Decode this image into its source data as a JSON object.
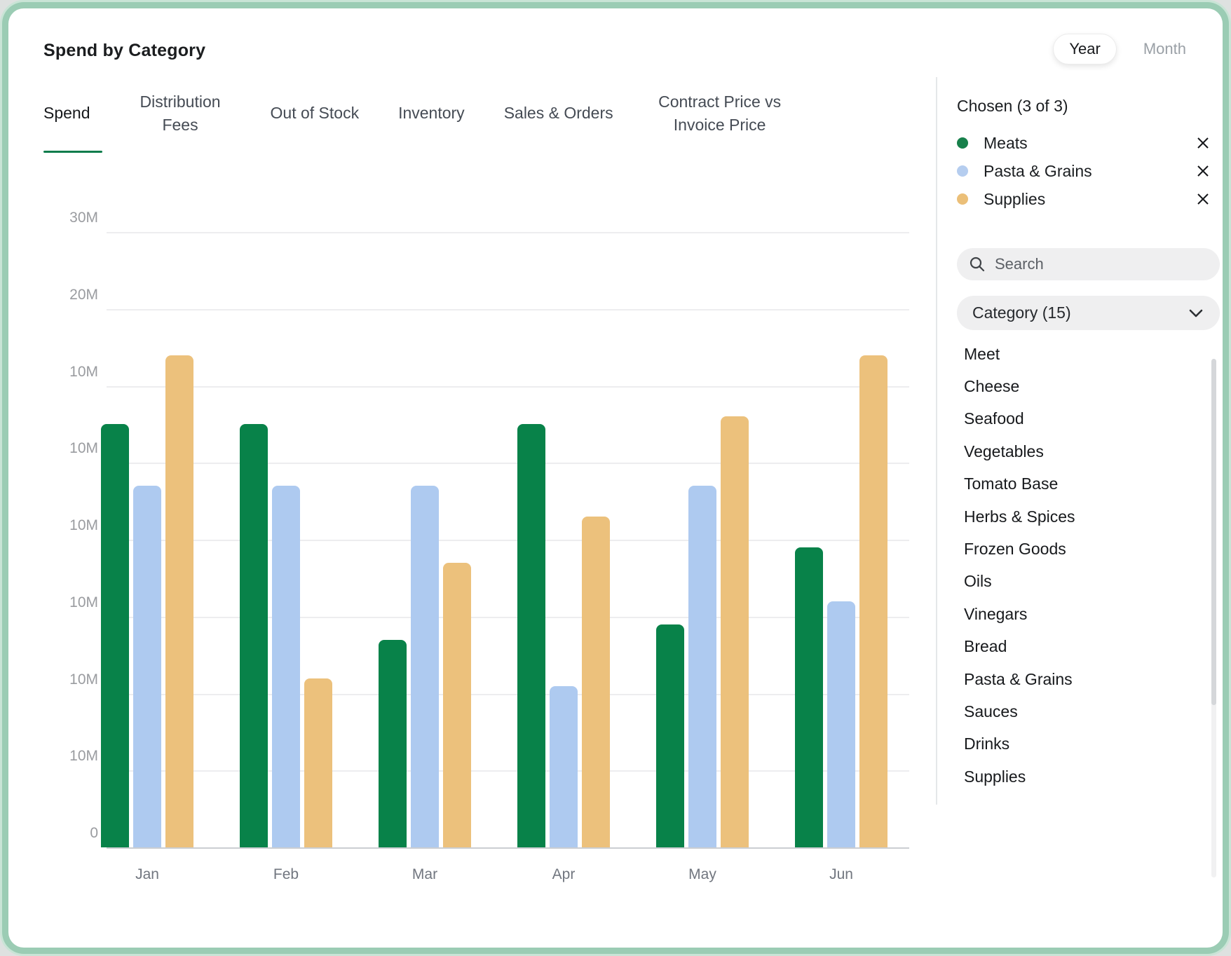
{
  "header": {
    "title": "Spend by Category",
    "toggle": {
      "options": [
        "Year",
        "Month"
      ],
      "selected": "Year"
    }
  },
  "tabs": {
    "items": [
      "Spend",
      "Distribution Fees",
      "Out of Stock",
      "Inventory",
      "Sales & Orders",
      "Contract Price vs Invoice Price"
    ],
    "active": "Spend"
  },
  "chart_data": {
    "type": "bar",
    "title": "Spend by Category",
    "categories": [
      "Jan",
      "Feb",
      "Mar",
      "Apr",
      "May",
      "Jun"
    ],
    "series": [
      {
        "name": "Meats",
        "color": "#088249",
        "values": [
          55,
          55,
          27,
          55,
          29,
          39
        ]
      },
      {
        "name": "Pasta & Grains",
        "color": "#AECAF0",
        "values": [
          47,
          47,
          47,
          21,
          47,
          32
        ]
      },
      {
        "name": "Supplies",
        "color": "#ECC17C",
        "values": [
          64,
          22,
          37,
          43,
          56,
          64
        ]
      }
    ],
    "y_tick_labels": [
      "30M",
      "20M",
      "10M",
      "10M",
      "10M",
      "10M",
      "10M",
      "10M",
      "0"
    ],
    "value_axis_note": "values are in axis steps of 10M per gridline as labeled on screen",
    "ylim": [
      0,
      80
    ],
    "grid": true,
    "legend_position": "right-panel"
  },
  "panel": {
    "chosen_label": "Chosen (3 of 3)",
    "chosen": [
      {
        "label": "Meats",
        "color": "#17804B"
      },
      {
        "label": "Pasta & Grains",
        "color": "#B5CDEF"
      },
      {
        "label": "Supplies",
        "color": "#EBBF78"
      }
    ],
    "search": {
      "placeholder": "Search"
    },
    "dropdown": {
      "label": "Category (15)"
    },
    "categories": [
      "Meet",
      "Cheese",
      "Seafood",
      "Vegetables",
      "Tomato Base",
      "Herbs & Spices",
      "Frozen Goods",
      "Oils",
      "Vinegars",
      "Bread",
      "Pasta & Grains",
      "Sauces",
      "Drinks",
      "Supplies"
    ]
  }
}
